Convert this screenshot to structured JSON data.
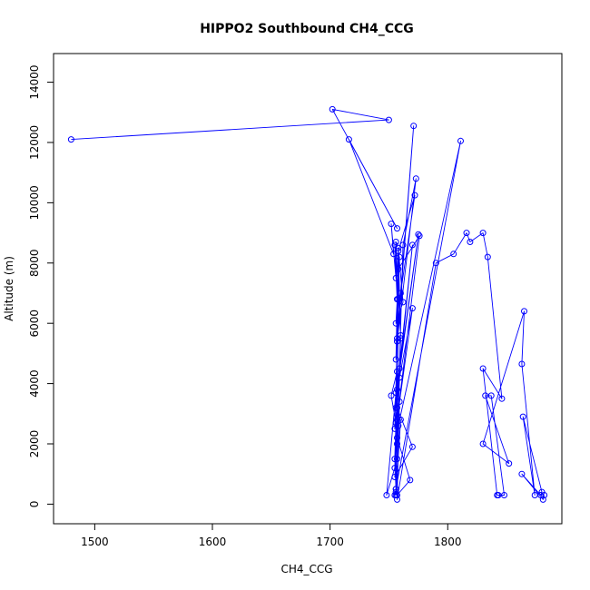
{
  "chart_data": {
    "type": "line",
    "title": "HIPPO2 Southbound CH4_CCG",
    "xlabel": "CH4_CCG",
    "ylabel": "Altitude (m)",
    "xlim": [
      1465,
      1897
    ],
    "ylim": [
      -650,
      14950
    ],
    "xticks": [
      1500,
      1600,
      1700,
      1800
    ],
    "yticks": [
      0,
      2000,
      4000,
      6000,
      8000,
      10000,
      12000,
      14000
    ],
    "color": "#0000ff",
    "markers": "open-circle",
    "series": [
      {
        "x": [
          1480,
          1750,
          1702,
          1757,
          1716,
          1754,
          1752,
          1756,
          1755,
          1757,
          1756,
          1760,
          1758,
          1762,
          1756,
          1759,
          1757,
          1771,
          1756,
          1758,
          1772,
          1760,
          1757,
          1773,
          1762,
          1759,
          1775,
          1757,
          1770,
          1756,
          1758,
          1776,
          1757,
          1770,
          1759,
          1755,
          1758,
          1757,
          1760,
          1755,
          1748,
          1756,
          1757,
          1755,
          1770,
          1757,
          1756,
          1760,
          1756,
          1757,
          1752,
          1756,
          1755,
          1756,
          1757,
          1768,
          1757,
          1756,
          1755,
          1811,
          1758,
          1759,
          1757,
          1790,
          1805,
          1816,
          1819,
          1830,
          1834,
          1846,
          1830,
          1842,
          1843,
          1848,
          1837,
          1832,
          1852,
          1830,
          1865,
          1863,
          1874,
          1864,
          1880,
          1879,
          1863,
          1881,
          1882
        ],
        "y": [
          12100,
          12750,
          13100,
          9150,
          12100,
          8300,
          9300,
          7500,
          8600,
          6800,
          8700,
          5600,
          8500,
          6700,
          6000,
          8200,
          5500,
          12550,
          4800,
          8400,
          10250,
          7000,
          5400,
          10800,
          8600,
          4500,
          8950,
          3800,
          8600,
          3200,
          7800,
          8900,
          2800,
          6500,
          4200,
          2500,
          6800,
          1500,
          5500,
          1200,
          300,
          3700,
          2000,
          900,
          1900,
          3200,
          500,
          2800,
          300,
          4400,
          3600,
          2700,
          1500,
          500,
          300,
          800,
          2200,
          400,
          300,
          12050,
          2600,
          3400,
          150,
          8000,
          8300,
          9000,
          8700,
          9000,
          8200,
          3500,
          4500,
          300,
          300,
          300,
          3600,
          3600,
          1350,
          2000,
          6400,
          4650,
          300,
          2900,
          400,
          300,
          1000,
          150,
          300
        ]
      }
    ]
  }
}
